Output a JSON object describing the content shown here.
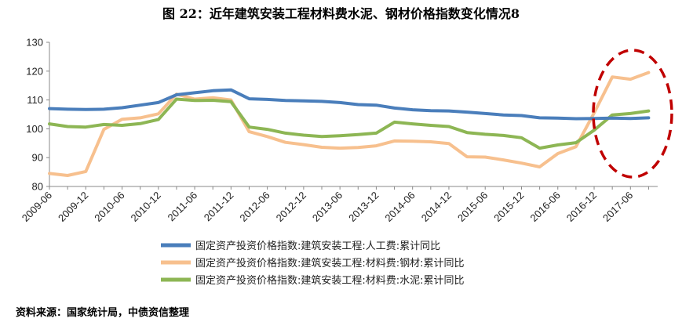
{
  "title": "图 22：近年建筑安装工程材料费水泥、钢材价格指数变化情况8",
  "source": "资料来源：国家统计局，中债资信整理",
  "colors": {
    "series1": "#4a7ebb",
    "series2": "#f7c08e",
    "series3": "#8db654",
    "highlight": "#c00000",
    "axis": "#888888"
  },
  "chart_data": {
    "type": "line",
    "grid": false,
    "legend_position": "bottom",
    "ylim": [
      80,
      130
    ],
    "yticks": [
      80,
      90,
      100,
      110,
      120,
      130
    ],
    "tick_labels": [
      "2009-06",
      "2009-12",
      "2010-06",
      "2010-12",
      "2011-06",
      "2011-12",
      "2012-06",
      "2012-12",
      "2013-06",
      "2013-12",
      "2014-06",
      "2014-12",
      "2015-06",
      "2015-12",
      "2016-06",
      "2016-12",
      "2017-06"
    ],
    "x": [
      "2009-06",
      "2009-09",
      "2009-12",
      "2010-03",
      "2010-06",
      "2010-09",
      "2010-12",
      "2011-03",
      "2011-06",
      "2011-09",
      "2011-12",
      "2012-03",
      "2012-06",
      "2012-09",
      "2012-12",
      "2013-03",
      "2013-06",
      "2013-09",
      "2013-12",
      "2014-03",
      "2014-06",
      "2014-09",
      "2014-12",
      "2015-03",
      "2015-06",
      "2015-09",
      "2015-12",
      "2016-03",
      "2016-06",
      "2016-09",
      "2016-12",
      "2017-03",
      "2017-06",
      "2017-09"
    ],
    "series": [
      {
        "name": "固定资产投资价格指数:建筑安装工程:人工费:累计同比",
        "values": [
          107,
          106.8,
          106.7,
          106.8,
          107.3,
          108.2,
          109.1,
          111.8,
          112.5,
          113.2,
          113.5,
          110.4,
          110.2,
          109.8,
          109.7,
          109.5,
          109.1,
          108.4,
          108.2,
          107.2,
          106.6,
          106.3,
          106.2,
          105.8,
          105.3,
          104.8,
          104.6,
          103.8,
          103.7,
          103.5,
          103.6,
          103.7,
          103.6,
          103.8
        ]
      },
      {
        "name": "固定资产投资价格指数:建筑安装工程:材料费:钢材:累计同比",
        "values": [
          84.5,
          83.8,
          85.2,
          99.8,
          103.3,
          103.8,
          105.2,
          112,
          110.3,
          110.8,
          110,
          99,
          97.3,
          95.3,
          94.5,
          93.6,
          93.3,
          93.5,
          94.1,
          95.8,
          95.7,
          95.5,
          94.9,
          90.3,
          90.2,
          89.2,
          88.1,
          86.8,
          91.4,
          93.8,
          105.5,
          118,
          117.2,
          119.5
        ]
      },
      {
        "name": "固定资产投资价格指数:建筑安装工程:材料费:水泥:累计同比",
        "values": [
          101.7,
          100.8,
          100.6,
          101.5,
          101.2,
          101.8,
          103.2,
          110.3,
          109.8,
          109.9,
          109.4,
          100.6,
          99.8,
          98.5,
          97.8,
          97.3,
          97.6,
          98,
          98.5,
          102.3,
          101.7,
          101.2,
          100.8,
          98.7,
          98.1,
          97.7,
          96.9,
          93.3,
          94.4,
          95.2,
          99.5,
          104.8,
          105.3,
          106.2
        ]
      }
    ]
  }
}
